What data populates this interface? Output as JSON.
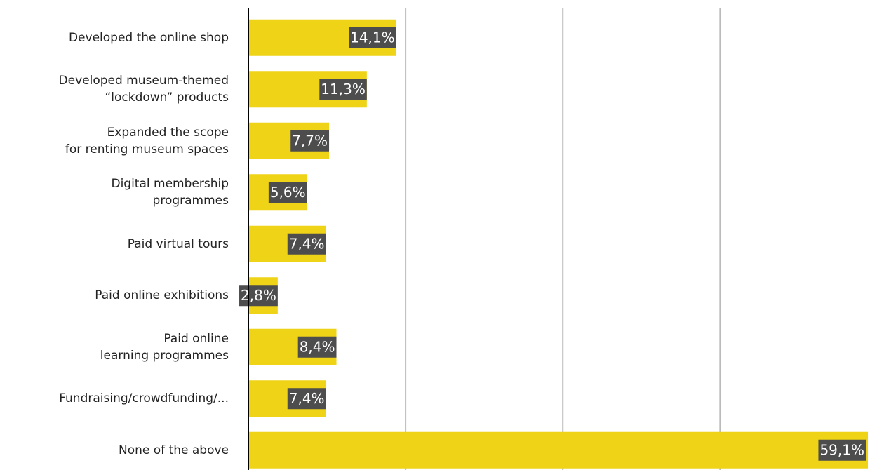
{
  "chart_data": {
    "type": "bar",
    "orientation": "horizontal",
    "categories": [
      "Developed the online shop",
      "Developed museum-themed\n“lockdown” products",
      "Expanded the scope\nfor renting museum spaces",
      "Digital membership\nprogrammes",
      "Paid virtual tours",
      "Paid online exhibitions",
      "Paid online\nlearning programmes",
      "Fundraising/crowdfunding/...",
      "None of the above"
    ],
    "values": [
      14.1,
      11.3,
      7.7,
      5.6,
      7.4,
      2.8,
      8.4,
      7.4,
      59.1
    ],
    "value_labels": [
      "14,1%",
      "11,3%",
      "7,7%",
      "5,6%",
      "7,4%",
      "2,8%",
      "8,4%",
      "7,4%",
      "59,1%"
    ],
    "color": "#eed316",
    "xlim": [
      0,
      59.3
    ],
    "xticks": [
      0,
      15,
      30,
      45
    ],
    "grid": true
  }
}
